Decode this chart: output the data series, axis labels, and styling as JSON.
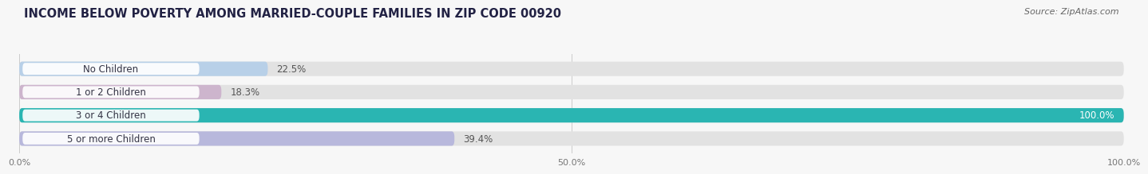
{
  "title": "INCOME BELOW POVERTY AMONG MARRIED-COUPLE FAMILIES IN ZIP CODE 00920",
  "source": "Source: ZipAtlas.com",
  "categories": [
    "No Children",
    "1 or 2 Children",
    "3 or 4 Children",
    "5 or more Children"
  ],
  "values": [
    22.5,
    18.3,
    100.0,
    39.4
  ],
  "bar_colors": [
    "#b8d0e8",
    "#cdb5cd",
    "#2ab5b2",
    "#b8b8dc"
  ],
  "bar_bg_color": "#e2e2e2",
  "xlim": [
    0,
    100
  ],
  "xticks": [
    0,
    50,
    100
  ],
  "xtick_labels": [
    "0.0%",
    "50.0%",
    "100.0%"
  ],
  "title_fontsize": 10.5,
  "source_fontsize": 8,
  "bar_label_fontsize": 8.5,
  "category_fontsize": 8.5,
  "value_label_color_inside": "#ffffff",
  "value_label_color_outside": "#555555",
  "background_color": "#f7f7f7",
  "bar_height": 0.62,
  "bar_gap": 0.38
}
